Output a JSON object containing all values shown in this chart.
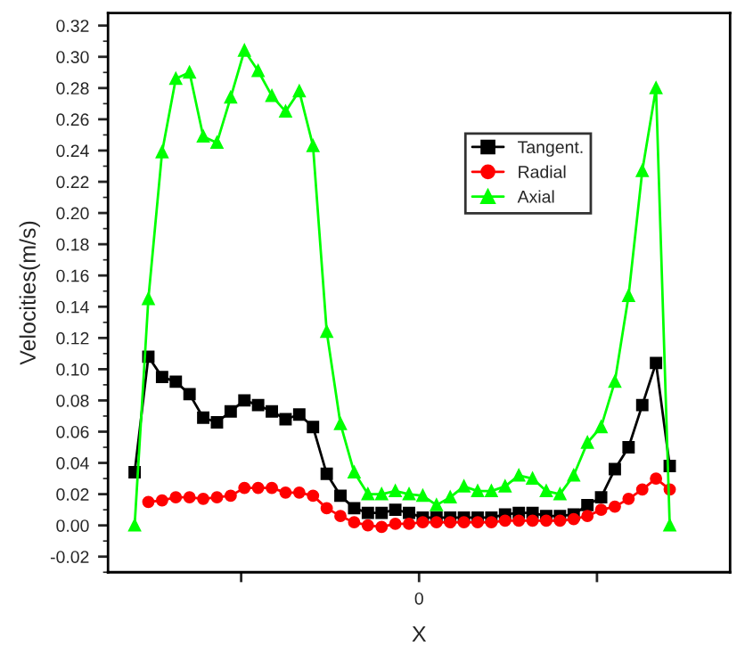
{
  "chart_data": {
    "type": "line",
    "xlabel": "X",
    "ylabel": "Velocities(m/s)",
    "categories": [
      null,
      null,
      null,
      null,
      null,
      null,
      null,
      null,
      null,
      null,
      null,
      null,
      null,
      null,
      null,
      null,
      null,
      null,
      null,
      null,
      null,
      null,
      null,
      null,
      null,
      null,
      null,
      null,
      null,
      null,
      null,
      null,
      null,
      null,
      null,
      null,
      null,
      null,
      null,
      null
    ],
    "annotations": [
      "0"
    ],
    "series": [
      {
        "name": "Tangent.",
        "color": "#000000",
        "marker": "square",
        "values": [
          0.034,
          0.108,
          0.095,
          0.092,
          0.084,
          0.069,
          0.066,
          0.073,
          0.08,
          0.077,
          0.073,
          0.068,
          0.071,
          0.063,
          0.033,
          0.019,
          0.011,
          0.008,
          0.008,
          0.01,
          0.008,
          0.005,
          0.005,
          0.005,
          0.005,
          0.005,
          0.005,
          0.007,
          0.008,
          0.008,
          0.006,
          0.006,
          0.007,
          0.013,
          0.018,
          0.036,
          0.05,
          0.077,
          0.104,
          0.038
        ]
      },
      {
        "name": "Radial",
        "color": "#ff0000",
        "marker": "circle",
        "values": [
          null,
          0.015,
          0.016,
          0.018,
          0.018,
          0.017,
          0.018,
          0.019,
          0.024,
          0.024,
          0.024,
          0.021,
          0.021,
          0.019,
          0.011,
          0.006,
          0.002,
          0.0,
          -0.001,
          0.001,
          0.001,
          0.002,
          0.002,
          0.002,
          0.002,
          0.002,
          0.002,
          0.003,
          0.003,
          0.003,
          0.003,
          0.003,
          0.004,
          0.006,
          0.01,
          0.012,
          0.017,
          0.023,
          0.03,
          0.023
        ]
      },
      {
        "name": "Axial",
        "color": "#00ff00",
        "marker": "triangle",
        "values": [
          0.0,
          0.145,
          0.239,
          0.286,
          0.29,
          0.249,
          0.245,
          0.274,
          0.304,
          0.291,
          0.275,
          0.265,
          0.278,
          0.243,
          0.124,
          0.065,
          0.034,
          0.02,
          0.02,
          0.022,
          0.02,
          0.019,
          0.013,
          0.018,
          0.025,
          0.022,
          0.022,
          0.025,
          0.032,
          0.03,
          0.022,
          0.02,
          0.032,
          0.053,
          0.063,
          0.092,
          0.147,
          0.227,
          0.28,
          0.0
        ]
      }
    ],
    "ylim": [
      -0.03,
      0.328
    ],
    "yticks": [
      {
        "value": -0.02,
        "label": "-0.02"
      },
      {
        "value": 0.0,
        "label": "0.00"
      },
      {
        "value": 0.02,
        "label": "0.02"
      },
      {
        "value": 0.04,
        "label": "0.04"
      },
      {
        "value": 0.06,
        "label": "0.06"
      },
      {
        "value": 0.08,
        "label": "0.08"
      },
      {
        "value": 0.1,
        "label": "0.10"
      },
      {
        "value": 0.12,
        "label": "0.12"
      },
      {
        "value": 0.14,
        "label": "0.14"
      },
      {
        "value": 0.16,
        "label": "0.16"
      },
      {
        "value": 0.18,
        "label": "0.18"
      },
      {
        "value": 0.2,
        "label": "0.20"
      },
      {
        "value": 0.22,
        "label": "0.22"
      },
      {
        "value": 0.24,
        "label": "0.24"
      },
      {
        "value": 0.26,
        "label": "0.26"
      },
      {
        "value": 0.28,
        "label": "0.28"
      },
      {
        "value": 0.3,
        "label": "0.30"
      },
      {
        "value": 0.32,
        "label": "0.32"
      }
    ],
    "grid": false,
    "legend": "top right"
  }
}
